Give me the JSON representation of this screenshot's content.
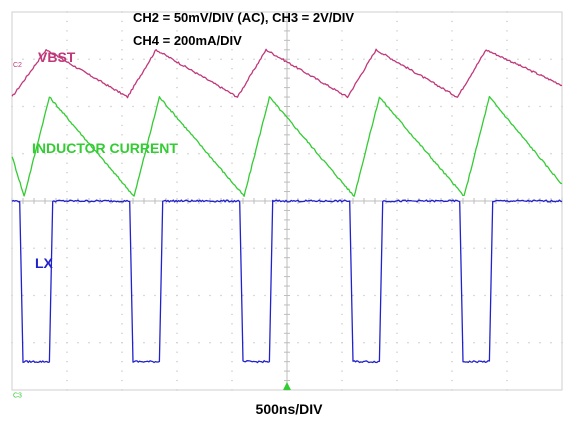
{
  "chart_data": {
    "type": "line",
    "title_lines": [
      "CH2 = 50mV/DIV (AC), CH3 = 2V/DIV",
      "CH4 = 200mA/DIV"
    ],
    "xlabel": "500ns/DIV",
    "xlim": [
      0,
      5000
    ],
    "ylim": [
      -4,
      4
    ],
    "grid": true,
    "grid_divisions": {
      "x": 10,
      "y": 8
    },
    "switching_period_ns": 1000,
    "channel_markers": {
      "ch2": "C2",
      "ch3": "C3"
    },
    "series": [
      {
        "name": "VBST",
        "color": "#c0387a",
        "offset_div": 2.9,
        "x": [
          0,
          310,
          1050,
          1310,
          2050,
          2310,
          3050,
          3310,
          4050,
          4310,
          5000
        ],
        "y": [
          2.2,
          3.2,
          2.2,
          3.2,
          2.2,
          3.2,
          2.2,
          3.2,
          2.2,
          3.2,
          2.45
        ]
      },
      {
        "name": "INDUCTOR CURRENT",
        "color": "#33cc33",
        "offset_div": 1.0,
        "x": [
          0,
          110,
          340,
          1110,
          1340,
          2110,
          2340,
          3110,
          3340,
          4110,
          4340,
          5000
        ],
        "y": [
          0.95,
          0.1,
          2.2,
          0.1,
          2.2,
          0.1,
          2.2,
          0.1,
          2.2,
          0.1,
          2.2,
          0.35
        ]
      },
      {
        "name": "LX",
        "color": "#2222cc",
        "offset_div": -2.35,
        "x": [
          0,
          70,
          100,
          340,
          370,
          1070,
          1100,
          1340,
          1370,
          2070,
          2100,
          2340,
          2370,
          3070,
          3100,
          3340,
          3370,
          4070,
          4100,
          4340,
          4370,
          5000
        ],
        "y": [
          0.0,
          0.0,
          -3.4,
          -3.4,
          0.0,
          0.0,
          -3.4,
          -3.4,
          0.0,
          0.0,
          -3.4,
          -3.4,
          0.0,
          0.0,
          -3.4,
          -3.4,
          0.0,
          0.0,
          -3.4,
          -3.4,
          0.0,
          0.0
        ]
      }
    ]
  }
}
